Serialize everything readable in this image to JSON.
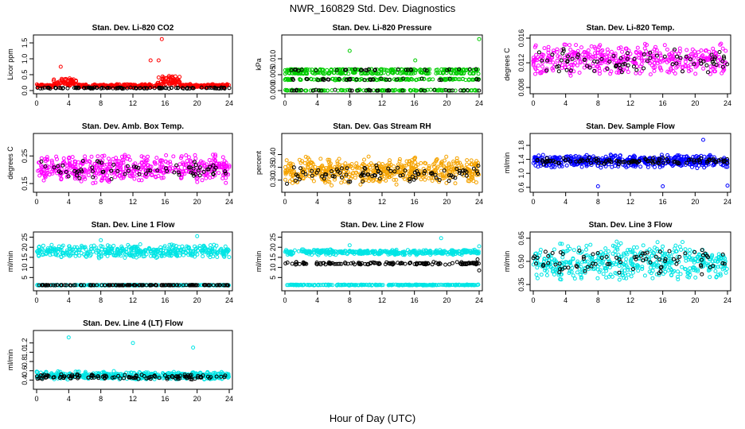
{
  "figure": {
    "title": "NWR_160829  Std. Dev. Diagnostics",
    "xlabel": "Hour of Day (UTC)"
  },
  "chart_data": [
    {
      "type": "scatter",
      "title": "Stan. Dev. Li-820 CO2",
      "ylabel": "Licor ppm",
      "xlim": [
        0,
        24
      ],
      "ylim": [
        0,
        1.65
      ],
      "xticks": [
        0,
        4,
        8,
        12,
        16,
        20,
        24
      ],
      "yticks": [
        "0.0",
        "0.5",
        "1.0",
        "1.5"
      ],
      "ytick_values": [
        0,
        0.5,
        1.0,
        1.5
      ],
      "series": [
        {
          "color": "#ff0000",
          "n": 480,
          "base": 0.15,
          "spread": 0.1,
          "bursts": [
            {
              "x0": 2,
              "x1": 5,
              "add": 0.2
            },
            {
              "x0": 15,
              "x1": 18,
              "add": 0.3
            }
          ],
          "outliers": [
            [
              15.6,
              1.62
            ],
            [
              14.2,
              0.95
            ],
            [
              3.0,
              0.75
            ],
            [
              15.2,
              0.95
            ]
          ]
        },
        {
          "color": "#000000",
          "n": 110,
          "base": 0.08,
          "spread": 0.04
        }
      ]
    },
    {
      "type": "scatter",
      "title": "Stan. Dev. Li-820 Pressure",
      "ylabel": "kPa",
      "xlim": [
        0,
        24
      ],
      "ylim": [
        0,
        0.0165
      ],
      "xticks": [
        0,
        4,
        8,
        12,
        16,
        20,
        24
      ],
      "yticks": [
        "0.000",
        "0.005",
        "0.010"
      ],
      "ytick_values": [
        0,
        0.005,
        0.01
      ],
      "series": [
        {
          "color": "#00cc00",
          "n": 520,
          "base": 0.005,
          "spread": 0.004,
          "levels": [
            0,
            0.0035,
            0.0055,
            0.0065
          ],
          "outliers": [
            [
              8.0,
              0.0125
            ],
            [
              24.0,
              0.0162
            ],
            [
              16.1,
              0.0095
            ]
          ]
        },
        {
          "color": "#000000",
          "n": 100,
          "base": 0.0,
          "spread": 0.0,
          "levels": [
            0,
            0.0035,
            0.0065
          ]
        }
      ]
    },
    {
      "type": "scatter",
      "title": "Stan. Dev. Li-820 Temp.",
      "ylabel": "degrees C",
      "xlim": [
        0,
        24
      ],
      "ylim": [
        0.0075,
        0.016
      ],
      "xticks": [
        0,
        4,
        8,
        12,
        16,
        20,
        24
      ],
      "yticks": [
        "0.008",
        "0.012",
        "0.016"
      ],
      "ytick_values": [
        0.008,
        0.012,
        0.016
      ],
      "series": [
        {
          "color": "#ff00ff",
          "n": 420,
          "base": 0.0125,
          "spread": 0.0045
        },
        {
          "color": "#000000",
          "n": 80,
          "base": 0.0122,
          "spread": 0.0035
        }
      ]
    },
    {
      "type": "scatter",
      "title": "Stan. Dev. Amb. Box Temp.",
      "ylabel": "degrees C",
      "xlim": [
        0,
        24
      ],
      "ylim": [
        0.13,
        0.32
      ],
      "xticks": [
        0,
        4,
        8,
        12,
        16,
        20,
        24
      ],
      "yticks": [
        "0.15",
        "0.25"
      ],
      "ytick_values": [
        0.15,
        0.25
      ],
      "series": [
        {
          "color": "#ff00ff",
          "n": 480,
          "base": 0.205,
          "spread": 0.09
        },
        {
          "color": "#000000",
          "n": 70,
          "base": 0.2,
          "spread": 0.06
        }
      ]
    },
    {
      "type": "scatter",
      "title": "Stan. Dev. Gas Stream RH",
      "ylabel": "percent",
      "xlim": [
        0,
        24
      ],
      "ylim": [
        0.265,
        0.47
      ],
      "xticks": [
        0,
        4,
        8,
        12,
        16,
        20,
        24
      ],
      "yticks": [
        "0.30",
        "0.35",
        "0.40"
      ],
      "ytick_values": [
        0.3,
        0.35,
        0.4
      ],
      "series": [
        {
          "color": "#f5a300",
          "n": 520,
          "base": 0.335,
          "spread": 0.1
        },
        {
          "color": "#000000",
          "n": 90,
          "base": 0.325,
          "spread": 0.07
        }
      ]
    },
    {
      "type": "scatter",
      "title": "Stan. Dev. Sample Flow",
      "ylabel": "ml/min",
      "xlim": [
        0,
        24
      ],
      "ylim": [
        0.55,
        2.05
      ],
      "xticks": [
        0,
        4,
        8,
        12,
        16,
        20,
        24
      ],
      "yticks": [
        "0.6",
        "1.0",
        "1.4",
        "1.8"
      ],
      "ytick_values": [
        0.6,
        1.0,
        1.4,
        1.8
      ],
      "series": [
        {
          "color": "#0000ff",
          "n": 500,
          "base": 1.35,
          "spread": 0.35,
          "outliers": [
            [
              8.0,
              0.63
            ],
            [
              16.0,
              0.63
            ],
            [
              24.0,
              0.65
            ],
            [
              21.0,
              1.96
            ]
          ]
        },
        {
          "color": "#000000",
          "n": 110,
          "base": 1.35,
          "spread": 0.18
        }
      ]
    },
    {
      "type": "scatter",
      "title": "Stan. Dev. Line 1 Flow",
      "ylabel": "ml/min",
      "xlim": [
        0,
        24
      ],
      "ylim": [
        0,
        26
      ],
      "xticks": [
        0,
        4,
        8,
        12,
        16,
        20,
        24
      ],
      "yticks": [
        "5",
        "10",
        "15",
        "20",
        "25"
      ],
      "ytick_values": [
        5,
        10,
        15,
        20,
        25
      ],
      "series": [
        {
          "color": "#00e5e5",
          "n": 420,
          "base": 18,
          "spread": 6,
          "outliers": [
            [
              20.0,
              25.5
            ],
            [
              8.0,
              23.5
            ]
          ]
        },
        {
          "color": "#00e5e5",
          "n": 200,
          "base": 1.2,
          "spread": 0.3
        },
        {
          "color": "#000000",
          "n": 150,
          "base": 1.2,
          "spread": 0.2
        }
      ]
    },
    {
      "type": "scatter",
      "title": "Stan. Dev. Line 2 Flow",
      "ylabel": "ml/min",
      "xlim": [
        0,
        24
      ],
      "ylim": [
        0,
        26
      ],
      "xticks": [
        0,
        4,
        8,
        12,
        16,
        20,
        24
      ],
      "yticks": [
        "5",
        "10",
        "15",
        "20",
        "25"
      ],
      "ytick_values": [
        5,
        10,
        15,
        20,
        25
      ],
      "series": [
        {
          "color": "#00e5e5",
          "n": 380,
          "base": 17.5,
          "spread": 2.5,
          "outliers": [
            [
              19.3,
              24.5
            ],
            [
              24.0,
              20.5
            ],
            [
              8.0,
              21
            ]
          ]
        },
        {
          "color": "#00e5e5",
          "n": 260,
          "base": 1.3,
          "spread": 0.4
        },
        {
          "color": "#000000",
          "n": 130,
          "base": 12,
          "spread": 1.2,
          "outliers": [
            [
              24.0,
              8.5
            ],
            [
              23.8,
              14
            ]
          ]
        }
      ]
    },
    {
      "type": "scatter",
      "title": "Stan. Dev. Line 3 Flow",
      "ylabel": "ml/min",
      "xlim": [
        0,
        24
      ],
      "ylim": [
        0.33,
        0.67
      ],
      "xticks": [
        0,
        4,
        8,
        12,
        16,
        20,
        24
      ],
      "yticks": [
        "0.35",
        "0.50",
        "0.65"
      ],
      "ytick_values": [
        0.35,
        0.5,
        0.65
      ],
      "series": [
        {
          "color": "#00e5e5",
          "n": 480,
          "base": 0.5,
          "spread": 0.22
        },
        {
          "color": "#000000",
          "n": 80,
          "base": 0.51,
          "spread": 0.17
        }
      ]
    },
    {
      "type": "scatter",
      "title": "Stan. Dev. Line 4 (LT) Flow",
      "ylabel": "ml/min",
      "xlim": [
        0,
        24
      ],
      "ylim": [
        0.27,
        1.4
      ],
      "xticks": [
        0,
        4,
        8,
        12,
        16,
        20,
        24
      ],
      "yticks": [
        "0.4",
        "0.6",
        "0.8",
        "1.0",
        "1.2"
      ],
      "ytick_values": [
        0.4,
        0.6,
        0.8,
        1.0,
        1.2
      ],
      "series": [
        {
          "color": "#00e5e5",
          "n": 450,
          "base": 0.5,
          "spread": 0.16,
          "outliers": [
            [
              4.0,
              1.32
            ],
            [
              12.0,
              1.2
            ],
            [
              19.5,
              1.1
            ]
          ]
        },
        {
          "color": "#000000",
          "n": 120,
          "base": 0.47,
          "spread": 0.1
        }
      ]
    }
  ]
}
